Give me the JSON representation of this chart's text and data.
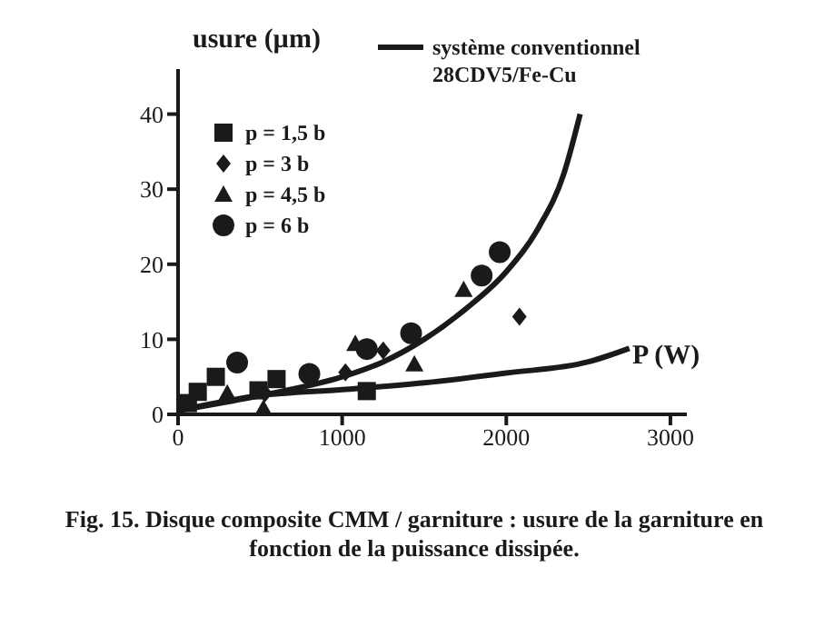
{
  "chart_data": {
    "type": "scatter",
    "xlabel": "P (W)",
    "ylabel": "usure (µm)",
    "xlim": [
      0,
      3100
    ],
    "ylim": [
      0,
      46
    ],
    "xticks": [
      0,
      1000,
      2000,
      3000
    ],
    "yticks": [
      0,
      10,
      20,
      30,
      40
    ],
    "grid": false,
    "legend": "top left",
    "series": [
      {
        "name": "p = 1,5 b",
        "color": "#1a1a1a",
        "marker": "square",
        "x": [
          60,
          120,
          230,
          490,
          600,
          1150
        ],
        "values": [
          1.5,
          3,
          5,
          3.2,
          4.7,
          3.1
        ]
      },
      {
        "name": "p = 3 b",
        "color": "#1a1a1a",
        "marker": "diamond",
        "x": [
          530,
          1020,
          1250,
          2080
        ],
        "values": [
          2.8,
          5.6,
          8.5,
          13
        ]
      },
      {
        "name": "p = 4,5 b",
        "color": "#1a1a1a",
        "marker": "triangle",
        "x": [
          300,
          520,
          1080,
          1440,
          1740
        ],
        "values": [
          2.8,
          0.8,
          9.4,
          6.7,
          16.6
        ]
      },
      {
        "name": "p = 6 b",
        "color": "#1a1a1a",
        "marker": "circle",
        "x": [
          360,
          800,
          1150,
          1420,
          1850,
          1960
        ],
        "values": [
          6.9,
          5.4,
          8.7,
          10.8,
          18.5,
          21.6
        ]
      },
      {
        "name": "système conventionnel\n28CDV5/Fe-Cu",
        "type": "line",
        "color": "#1a1a1a",
        "marker": "none",
        "x": [
          0,
          500,
          1000,
          1250,
          1500,
          1750,
          2000,
          2200,
          2350,
          2450
        ],
        "values": [
          0.5,
          2.5,
          5,
          7,
          10,
          14,
          19,
          25,
          32,
          40
        ]
      },
      {
        "type": "line",
        "color": "#1a1a1a",
        "marker": "none",
        "x": [
          0,
          500,
          1000,
          1500,
          2000,
          2500,
          2750
        ],
        "values": [
          0.5,
          2.5,
          3.3,
          4.2,
          5.5,
          7,
          8.8
        ]
      }
    ],
    "annotations": [
      "Fig. 15. Disque composite CMM / garniture : usure de la garniture en fonction de la puissance dissipée."
    ]
  }
}
